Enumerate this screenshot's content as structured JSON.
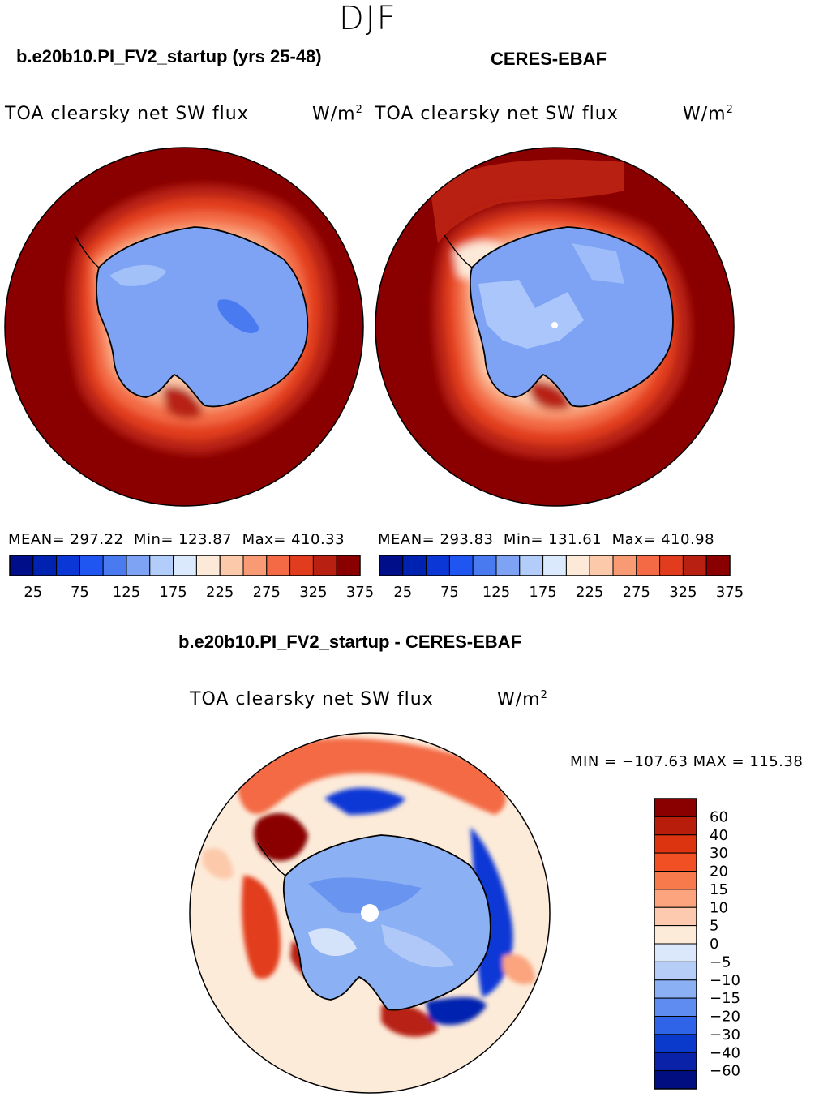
{
  "figure": {
    "season": "DJF",
    "left_title": "b.e20b10.PI_FV2_startup (yrs 25-48)",
    "right_title": "CERES-EBAF",
    "diff_title": "b.e20b10.PI_FV2_startup - CERES-EBAF"
  },
  "chart_data": [
    {
      "type": "heatmap",
      "projection": "south-polar-stereographic",
      "title": "b.e20b10.PI_FV2_startup (yrs 25-48)",
      "variable": "TOA clearsky net SW flux",
      "units": "W/m",
      "units_sup": "2",
      "stats_text": "MEAN= 297.22  Min= 123.87  Max= 410.33",
      "mean": 297.22,
      "min": 123.87,
      "max": 410.33,
      "colorbar": {
        "levels": [
          25,
          50,
          75,
          100,
          125,
          150,
          175,
          200,
          225,
          250,
          275,
          300,
          325,
          350,
          375
        ],
        "tick_labels": [
          "25",
          "75",
          "125",
          "175",
          "225",
          "275",
          "325",
          "375"
        ],
        "colors": [
          "#000e8a",
          "#0022b0",
          "#0a37d6",
          "#1f55f0",
          "#4a7af0",
          "#7ea3f5",
          "#b3cdfb",
          "#dbe9fd",
          "#fde9d8",
          "#fcc9aa",
          "#f89b74",
          "#f36a44",
          "#e23c1e",
          "#b82012",
          "#8a0000"
        ]
      }
    },
    {
      "type": "heatmap",
      "projection": "south-polar-stereographic",
      "title": "CERES-EBAF",
      "variable": "TOA clearsky net SW flux",
      "units": "W/m",
      "units_sup": "2",
      "stats_text": "MEAN= 293.83  Min= 131.61  Max= 410.98",
      "mean": 293.83,
      "min": 131.61,
      "max": 410.98,
      "colorbar": {
        "levels": [
          25,
          50,
          75,
          100,
          125,
          150,
          175,
          200,
          225,
          250,
          275,
          300,
          325,
          350,
          375
        ],
        "tick_labels": [
          "25",
          "75",
          "125",
          "175",
          "225",
          "275",
          "325",
          "375"
        ],
        "colors": [
          "#000e8a",
          "#0022b0",
          "#0a37d6",
          "#1f55f0",
          "#4a7af0",
          "#7ea3f5",
          "#b3cdfb",
          "#dbe9fd",
          "#fde9d8",
          "#fcc9aa",
          "#f89b74",
          "#f36a44",
          "#e23c1e",
          "#b82012",
          "#8a0000"
        ]
      }
    },
    {
      "type": "heatmap",
      "projection": "south-polar-stereographic",
      "title": "b.e20b10.PI_FV2_startup - CERES-EBAF",
      "variable": "TOA clearsky net SW flux",
      "units": "W/m",
      "units_sup": "2",
      "stats_text": "MIN = −107.63 MAX = 115.38",
      "min": -107.63,
      "max": 115.38,
      "colorbar": {
        "levels": [
          60,
          40,
          30,
          20,
          15,
          10,
          5,
          0,
          -5,
          -10,
          -15,
          -20,
          -30,
          -40,
          -60
        ],
        "tick_labels": [
          "60",
          "40",
          "30",
          "20",
          "15",
          "10",
          "5",
          "0",
          "−5",
          "−10",
          "−15",
          "−20",
          "−30",
          "−40",
          "−60"
        ],
        "colors": [
          "#8a0000",
          "#b81c0a",
          "#dc3410",
          "#f05024",
          "#f67a4c",
          "#fba47e",
          "#fdcab0",
          "#fdebd9",
          "#dbe8fb",
          "#b6cdf8",
          "#8cb0f4",
          "#5e8cf0",
          "#2f63e8",
          "#0a3acc",
          "#0a22a8",
          "#000e80"
        ]
      }
    }
  ]
}
